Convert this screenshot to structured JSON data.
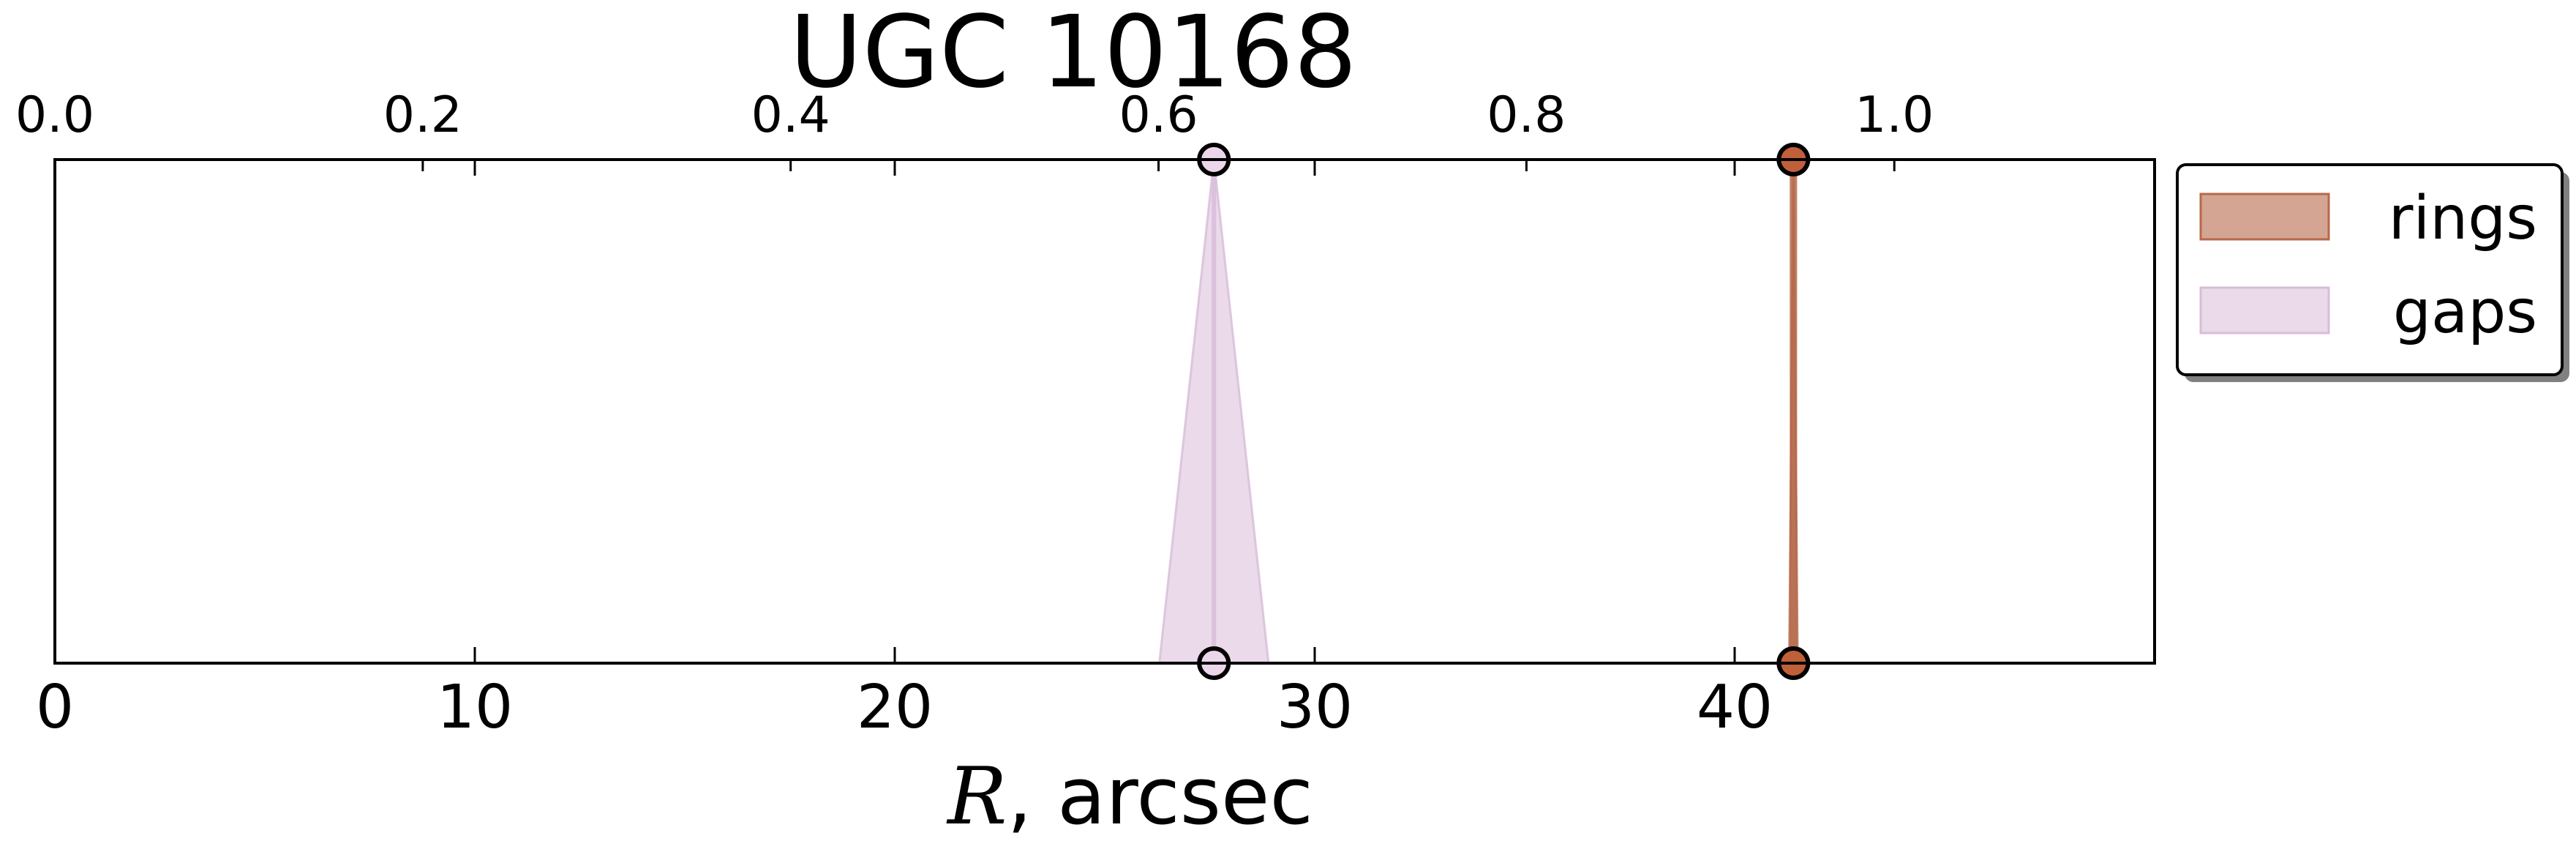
{
  "chart_data": {
    "type": "area",
    "title": "UGC 10168",
    "xlabel_symbol": "R",
    "xlabel_rest": ", arcsec",
    "xlim": [
      0,
      50
    ],
    "xticks": [
      0,
      10,
      20,
      30,
      40
    ],
    "top_axis": {
      "min": 0.0,
      "max": 1.1415,
      "ticks": [
        0.0,
        0.2,
        0.4,
        0.6,
        0.8,
        1.0
      ],
      "tick_labels": [
        "0.0",
        "0.2",
        "0.4",
        "0.6",
        "0.8",
        "1.0"
      ]
    },
    "series": [
      {
        "name": "rings",
        "color": "#b5694a",
        "marker_color": "#c0603a",
        "fill_opacity": 0.6,
        "features": [
          {
            "center": 41.4,
            "half_width": 0.1
          }
        ]
      },
      {
        "name": "gaps",
        "color": "#d8bcd8",
        "marker_color": "#ecd6ea",
        "fill_opacity": 0.55,
        "features": [
          {
            "center": 27.6,
            "half_width": 1.3
          }
        ]
      }
    ],
    "legend": {
      "placement": "outside top-right",
      "entries": [
        "rings",
        "gaps"
      ]
    },
    "grid": false
  }
}
